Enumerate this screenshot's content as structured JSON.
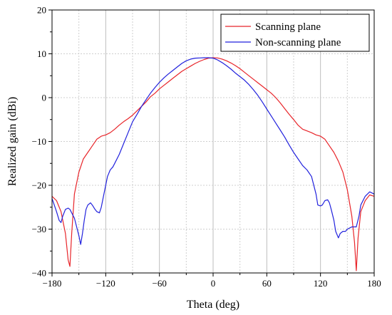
{
  "chart_data": {
    "type": "line",
    "title": "",
    "xlabel": "Theta (deg)",
    "ylabel": "Realized gain (dBi)",
    "xlim": [
      -180,
      180
    ],
    "ylim": [
      -40,
      20
    ],
    "x_ticks": [
      -180,
      -120,
      -60,
      0,
      60,
      120,
      180
    ],
    "y_ticks": [
      -40,
      -30,
      -20,
      -10,
      0,
      10,
      20
    ],
    "grid": true,
    "legend_position": "top-right",
    "series": [
      {
        "name": "Scanning plane",
        "color": "#e8252a",
        "x": [
          -180,
          -175,
          -170,
          -165,
          -162,
          -160,
          -158,
          -155,
          -150,
          -145,
          -140,
          -135,
          -130,
          -125,
          -120,
          -115,
          -110,
          -105,
          -100,
          -95,
          -90,
          -85,
          -80,
          -75,
          -70,
          -65,
          -60,
          -55,
          -50,
          -45,
          -40,
          -35,
          -30,
          -25,
          -20,
          -15,
          -10,
          -5,
          0,
          5,
          10,
          15,
          20,
          25,
          30,
          35,
          40,
          45,
          50,
          55,
          60,
          65,
          70,
          75,
          80,
          85,
          90,
          95,
          100,
          105,
          110,
          115,
          120,
          125,
          130,
          135,
          140,
          145,
          150,
          155,
          158,
          160,
          162,
          165,
          170,
          175,
          180
        ],
        "y": [
          -22.5,
          -23.5,
          -26,
          -31,
          -37,
          -38.5,
          -31,
          -22,
          -17,
          -14,
          -12.5,
          -11,
          -9.5,
          -8.8,
          -8.5,
          -8,
          -7.2,
          -6.3,
          -5.5,
          -4.8,
          -4,
          -3,
          -2,
          -1,
          0.2,
          1,
          2,
          2.8,
          3.6,
          4.4,
          5.2,
          6,
          6.6,
          7.2,
          7.8,
          8.3,
          8.7,
          9,
          9.1,
          9.05,
          8.8,
          8.4,
          7.9,
          7.3,
          6.6,
          5.8,
          5,
          4.2,
          3.4,
          2.6,
          1.8,
          1,
          0,
          -1.2,
          -2.5,
          -3.8,
          -5,
          -6.3,
          -7.2,
          -7.6,
          -8,
          -8.5,
          -8.8,
          -9.5,
          -11,
          -12.5,
          -14.5,
          -17,
          -21,
          -27,
          -33,
          -39.5,
          -32,
          -26,
          -23.5,
          -22.2,
          -22.5
        ]
      },
      {
        "name": "Non-scanning plane",
        "color": "#2222dd",
        "x": [
          -180,
          -175,
          -172,
          -170,
          -168,
          -165,
          -162,
          -160,
          -155,
          -150,
          -148,
          -146,
          -144,
          -142,
          -140,
          -137,
          -135,
          -132,
          -130,
          -127,
          -125,
          -122,
          -120,
          -118,
          -115,
          -112,
          -110,
          -105,
          -100,
          -95,
          -90,
          -85,
          -80,
          -75,
          -70,
          -65,
          -60,
          -55,
          -50,
          -45,
          -40,
          -35,
          -30,
          -25,
          -20,
          -15,
          -10,
          -5,
          0,
          5,
          10,
          15,
          20,
          25,
          30,
          35,
          40,
          45,
          50,
          55,
          60,
          65,
          70,
          75,
          80,
          85,
          90,
          95,
          100,
          105,
          110,
          115,
          117,
          120,
          122,
          125,
          128,
          130,
          132,
          135,
          137,
          140,
          142,
          145,
          148,
          150,
          155,
          160,
          163,
          165,
          170,
          175,
          180
        ],
        "y": [
          -23,
          -26,
          -28,
          -28.5,
          -27,
          -25.5,
          -25.2,
          -25.5,
          -27.5,
          -31.5,
          -33.5,
          -31,
          -28,
          -25.5,
          -24.5,
          -24,
          -24.5,
          -25.5,
          -26,
          -26.3,
          -25,
          -22,
          -20,
          -18,
          -16.5,
          -15.8,
          -15,
          -13,
          -10.5,
          -8,
          -5.5,
          -3.8,
          -2,
          -0.5,
          1,
          2.3,
          3.5,
          4.5,
          5.4,
          6.2,
          7,
          7.8,
          8.4,
          8.8,
          9,
          9.05,
          9.1,
          9.1,
          9,
          8.6,
          8,
          7.3,
          6.5,
          5.6,
          4.8,
          4,
          3,
          1.8,
          0.5,
          -1,
          -2.6,
          -4.2,
          -5.8,
          -7.4,
          -9,
          -10.8,
          -12.5,
          -14,
          -15.5,
          -16.5,
          -18,
          -22,
          -24.5,
          -24.7,
          -24.5,
          -23.5,
          -23.3,
          -24,
          -25.5,
          -28,
          -30.5,
          -32,
          -31,
          -30.5,
          -30.5,
          -30,
          -29.5,
          -29.5,
          -27,
          -24.5,
          -22.5,
          -21.5,
          -22
        ]
      }
    ]
  }
}
